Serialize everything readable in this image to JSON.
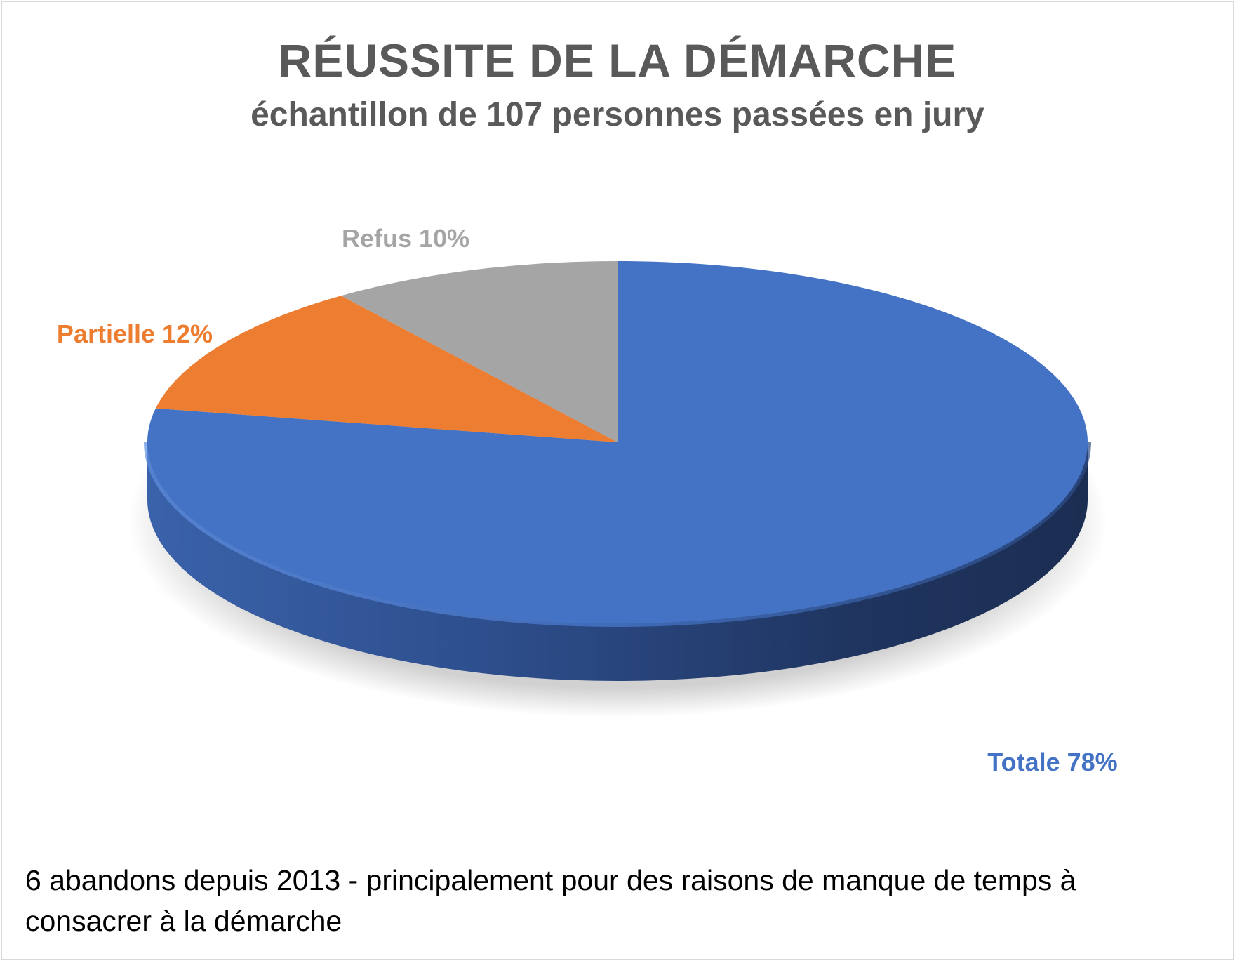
{
  "chart_data": {
    "type": "pie",
    "title": "RÉUSSITE DE LA DÉMARCHE",
    "subtitle": "échantillon de 107 personnes passées en jury",
    "slices": [
      {
        "label": "Totale",
        "value": 78,
        "display": "Totale 78%",
        "color": "#4472c4"
      },
      {
        "label": "Partielle",
        "value": 12,
        "display": "Partielle 12%",
        "color": "#ed7d31"
      },
      {
        "label": "Refus",
        "value": 10,
        "display": "Refus 10%",
        "color": "#a5a5a5"
      }
    ],
    "annotation": "6 abandons depuis 2013 - principalement pour des raisons de manque de temps à consacrer à la démarche"
  }
}
